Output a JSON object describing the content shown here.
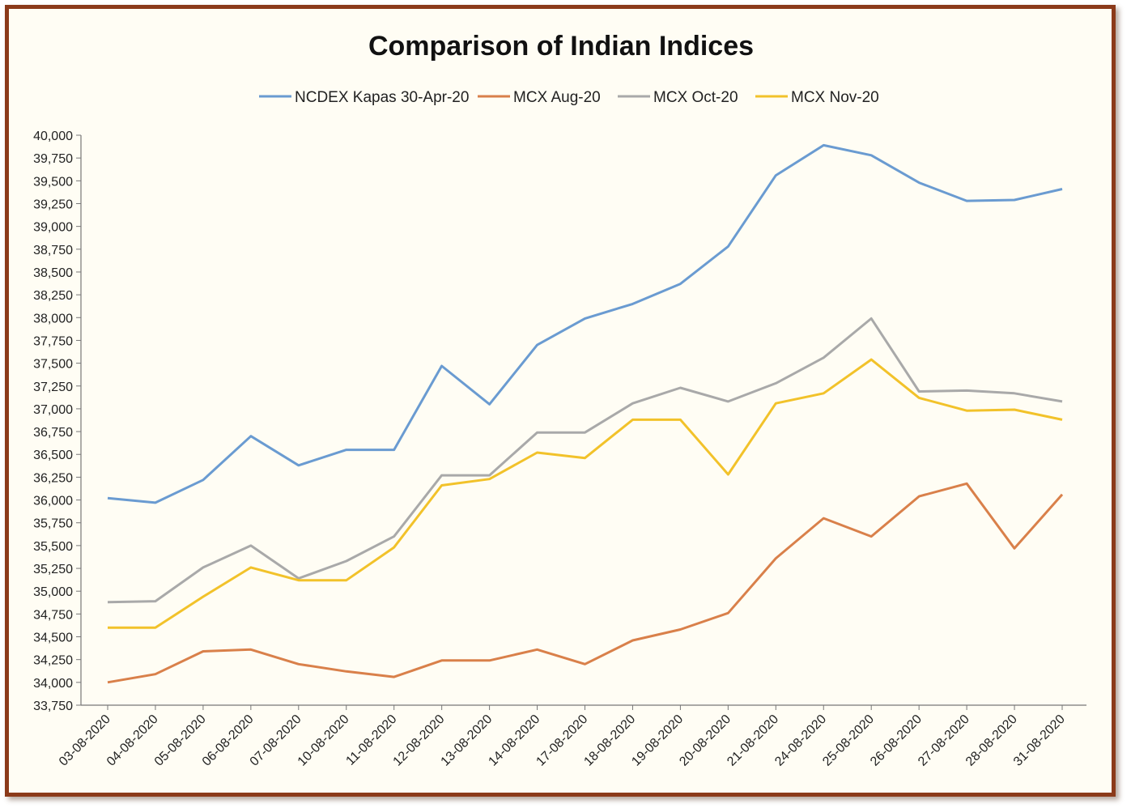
{
  "chart_data": {
    "type": "line",
    "title": "Comparison of Indian Indices",
    "xlabel": "",
    "ylabel": "",
    "ylim": [
      33750,
      40000
    ],
    "ytick_step": 250,
    "ytick_labels": [
      "33,750",
      "34,000",
      "34,250",
      "34,500",
      "34,750",
      "35,000",
      "35,250",
      "35,500",
      "35,750",
      "36,000",
      "36,250",
      "36,500",
      "36,750",
      "37,000",
      "37,250",
      "37,500",
      "37,750",
      "38,000",
      "38,250",
      "38,500",
      "38,750",
      "39,000",
      "39,250",
      "39,500",
      "39,750",
      "40,000"
    ],
    "grid": false,
    "legend_position": "top",
    "categories": [
      "03-08-2020",
      "04-08-2020",
      "05-08-2020",
      "06-08-2020",
      "07-08-2020",
      "10-08-2020",
      "11-08-2020",
      "12-08-2020",
      "13-08-2020",
      "14-08-2020",
      "17-08-2020",
      "18-08-2020",
      "19-08-2020",
      "20-08-2020",
      "21-08-2020",
      "24-08-2020",
      "25-08-2020",
      "26-08-2020",
      "27-08-2020",
      "28-08-2020",
      "31-08-2020"
    ],
    "series": [
      {
        "name": "NCDEX Kapas 30-Apr-20",
        "color": "#6a9bd1",
        "values": [
          36020,
          35970,
          36220,
          36700,
          36380,
          36550,
          36550,
          37470,
          37050,
          37700,
          37990,
          38150,
          38370,
          38780,
          39560,
          39890,
          39780,
          39480,
          39280,
          39290,
          39410
        ]
      },
      {
        "name": "MCX Aug-20",
        "color": "#d9804a",
        "values": [
          34000,
          34090,
          34340,
          34360,
          34200,
          34120,
          34060,
          34240,
          34240,
          34360,
          34200,
          34460,
          34580,
          34760,
          35360,
          35800,
          35600,
          36040,
          36180,
          35470,
          36060
        ]
      },
      {
        "name": "MCX Oct-20",
        "color": "#a9a9a9",
        "values": [
          34880,
          34890,
          35260,
          35500,
          35140,
          35330,
          35600,
          36270,
          36270,
          36740,
          36740,
          37060,
          37230,
          37080,
          37280,
          37560,
          37990,
          37190,
          37200,
          37170,
          37080
        ]
      },
      {
        "name": "MCX Nov-20",
        "color": "#f2c22a",
        "values": [
          34600,
          34600,
          34940,
          35260,
          35120,
          35120,
          35480,
          36160,
          36230,
          36520,
          36460,
          36880,
          36880,
          36280,
          37060,
          37170,
          37540,
          37120,
          36980,
          36990,
          36880
        ]
      }
    ]
  }
}
